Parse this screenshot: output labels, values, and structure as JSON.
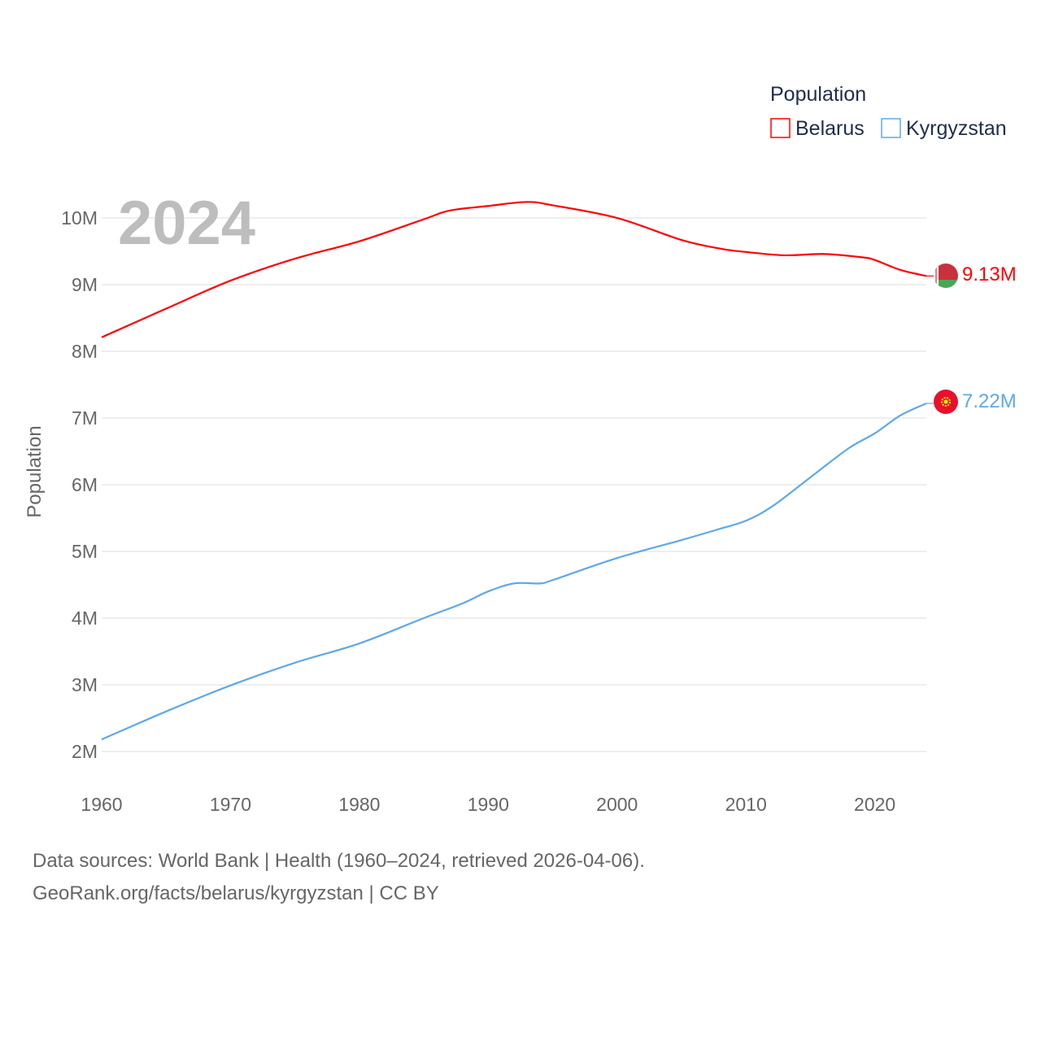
{
  "chart_data": {
    "type": "line",
    "title": "",
    "ylabel": "Population",
    "xlabel": "",
    "xlim": [
      1960,
      2024
    ],
    "ylim": [
      2000000,
      10000000
    ],
    "x_ticks": [
      1960,
      1970,
      1980,
      1990,
      2000,
      2010,
      2020
    ],
    "x_tick_labels": [
      "1960",
      "1970",
      "1980",
      "1990",
      "2000",
      "2010",
      "2020"
    ],
    "y_ticks": [
      2000000,
      3000000,
      4000000,
      5000000,
      6000000,
      7000000,
      8000000,
      9000000,
      10000000
    ],
    "y_tick_labels": [
      "2M",
      "3M",
      "4M",
      "5M",
      "6M",
      "7M",
      "8M",
      "9M",
      "10M"
    ],
    "grid": true,
    "year_watermark": "2024",
    "legend": {
      "title": "Population",
      "placement": "top-right"
    },
    "series": [
      {
        "name": "Belarus",
        "color": "#ff0000",
        "end_label": "9.13M",
        "flag": "belarus-flag",
        "x": [
          1960,
          1965,
          1970,
          1975,
          1980,
          1985,
          1987,
          1990,
          1993,
          1995,
          2000,
          2005,
          2008,
          2010,
          2013,
          2016,
          2019,
          2020,
          2022,
          2024
        ],
        "values": [
          8210000,
          8640000,
          9060000,
          9390000,
          9650000,
          9980000,
          10110000,
          10180000,
          10240000,
          10190000,
          10000000,
          9670000,
          9540000,
          9490000,
          9440000,
          9460000,
          9410000,
          9370000,
          9220000,
          9130000
        ]
      },
      {
        "name": "Kyrgyzstan",
        "color": "#5ea8ea",
        "end_label": "7.22M",
        "flag": "kyrgyzstan-flag",
        "x": [
          1960,
          1965,
          1970,
          1975,
          1980,
          1985,
          1988,
          1990,
          1992,
          1994,
          1995,
          2000,
          2005,
          2008,
          2010,
          2012,
          2015,
          2018,
          2020,
          2022,
          2024
        ],
        "values": [
          2180000,
          2600000,
          2990000,
          3330000,
          3620000,
          4000000,
          4220000,
          4400000,
          4520000,
          4520000,
          4570000,
          4900000,
          5170000,
          5340000,
          5460000,
          5670000,
          6110000,
          6550000,
          6770000,
          7040000,
          7220000
        ]
      }
    ]
  },
  "footer": {
    "line1": "Data sources: World Bank | Health (1960–2024, retrieved 2026-04-06).",
    "line2": "GeoRank.org/facts/belarus/kyrgyzstan | CC BY"
  }
}
